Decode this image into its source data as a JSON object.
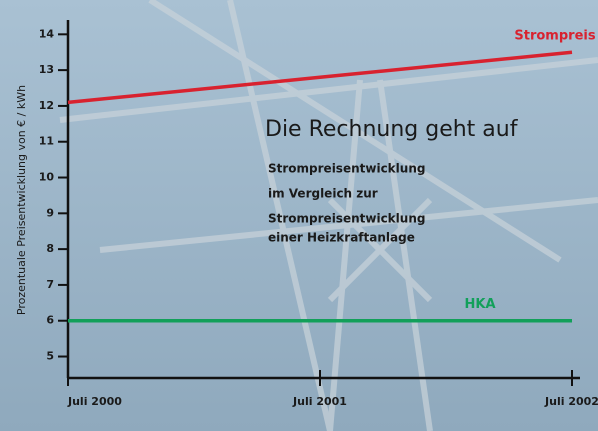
{
  "chart_data": {
    "type": "line",
    "title": "Die Rechnung geht auf",
    "subtitle": [
      "Strompreisentwicklung",
      "im Vergleich zur",
      "Strompreisentwicklung",
      "einer Heizkraftanlage"
    ],
    "y_label": "Prozentuale Preisentwicklung von € / kWh",
    "categories": [
      "Juli 2000",
      "Juli 2001",
      "Juli 2002"
    ],
    "series": [
      {
        "name": "Strompreis",
        "color": "#d8222f",
        "values": [
          12.1,
          12.8,
          13.5
        ]
      },
      {
        "name": "HKA",
        "color": "#12a05a",
        "values": [
          6,
          6,
          6
        ]
      }
    ],
    "ylim": [
      4.4,
      14.4
    ],
    "yticks": [
      5,
      6,
      7,
      8,
      9,
      10,
      11,
      12,
      13,
      14
    ]
  }
}
